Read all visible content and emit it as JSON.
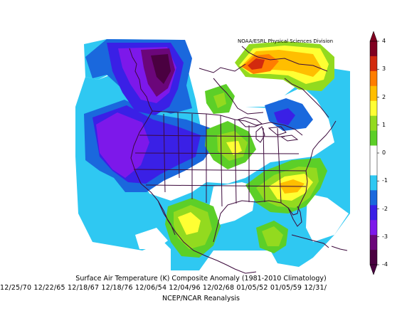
{
  "credit": "NOAA/ESRL Physical Sciences Division",
  "title": "Surface Air Temperature (K) Composite Anomaly (1981-2010 Climatology)",
  "dates": "12/25/70 12/22/65 12/18/67 12/18/76 12/06/54 12/04/96 12/02/68 01/05/52 01/05/59 12/31/",
  "source": "NCEP/NCAR Reanalysis",
  "colorbar": {
    "ticks": [
      "4",
      "3",
      "2",
      "1",
      "0",
      "-1",
      "-2",
      "-3",
      "-4"
    ],
    "colors": [
      "#800020",
      "#d22a0e",
      "#ff7d00",
      "#ffbe00",
      "#ffff33",
      "#93da1f",
      "#5ccf28",
      "#ffffff",
      "#ffffff",
      "#2fc8f2",
      "#1a68dd",
      "#3a20e6",
      "#7d18ea",
      "#6b067a",
      "#4a0040"
    ]
  }
}
